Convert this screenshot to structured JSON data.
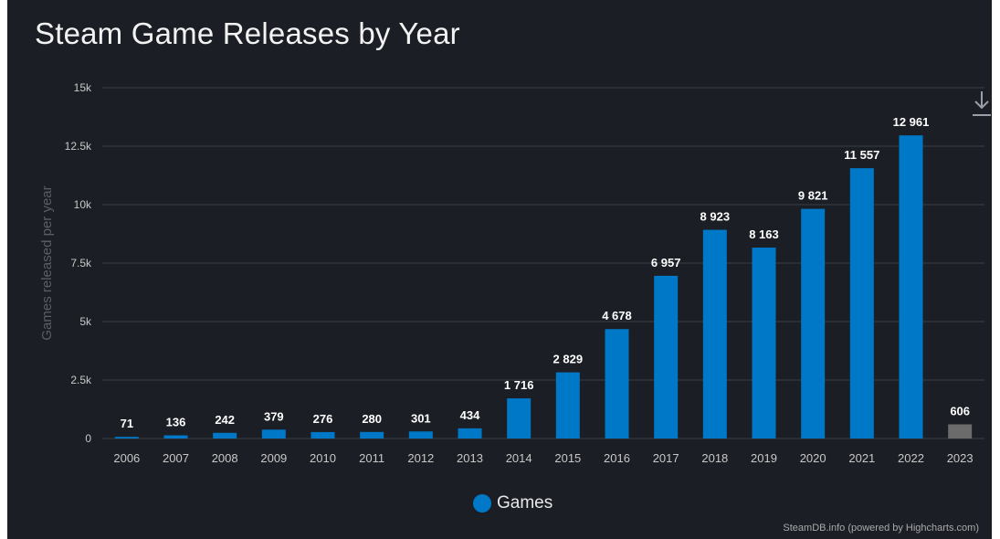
{
  "chart_data": {
    "type": "bar",
    "title": "Steam Game Releases by Year",
    "ylabel": "Games released per year",
    "xlabel": "",
    "ylim": [
      0,
      15000
    ],
    "y_ticks": [
      0,
      2500,
      5000,
      7500,
      10000,
      12500,
      15000
    ],
    "y_tick_labels": [
      "0",
      "2.5k",
      "5k",
      "7.5k",
      "10k",
      "12.5k",
      "15k"
    ],
    "categories": [
      "2006",
      "2007",
      "2008",
      "2009",
      "2010",
      "2011",
      "2012",
      "2013",
      "2014",
      "2015",
      "2016",
      "2017",
      "2018",
      "2019",
      "2020",
      "2021",
      "2022",
      "2023"
    ],
    "series": [
      {
        "name": "Games",
        "values": [
          71,
          136,
          242,
          379,
          276,
          280,
          301,
          434,
          1716,
          2829,
          4678,
          6957,
          8923,
          8163,
          9821,
          11557,
          12961,
          606
        ],
        "data_labels": [
          "71",
          "136",
          "242",
          "379",
          "276",
          "280",
          "301",
          "434",
          "1 716",
          "2 829",
          "4 678",
          "6 957",
          "8 923",
          "8 163",
          "9 821",
          "11 557",
          "12 961",
          "606"
        ]
      }
    ],
    "legend": "bottom-center",
    "grid": true
  },
  "colors": {
    "bar": "#0078c8",
    "bar_partial_year": "#6b6b6b",
    "grid": "#3a3e46",
    "tick_label": "#c8c8c8",
    "axis_title": "#5a5e66"
  },
  "toolbar": {
    "download_icon": "download-icon"
  },
  "credits": "SteamDB.info (powered by Highcharts.com)"
}
